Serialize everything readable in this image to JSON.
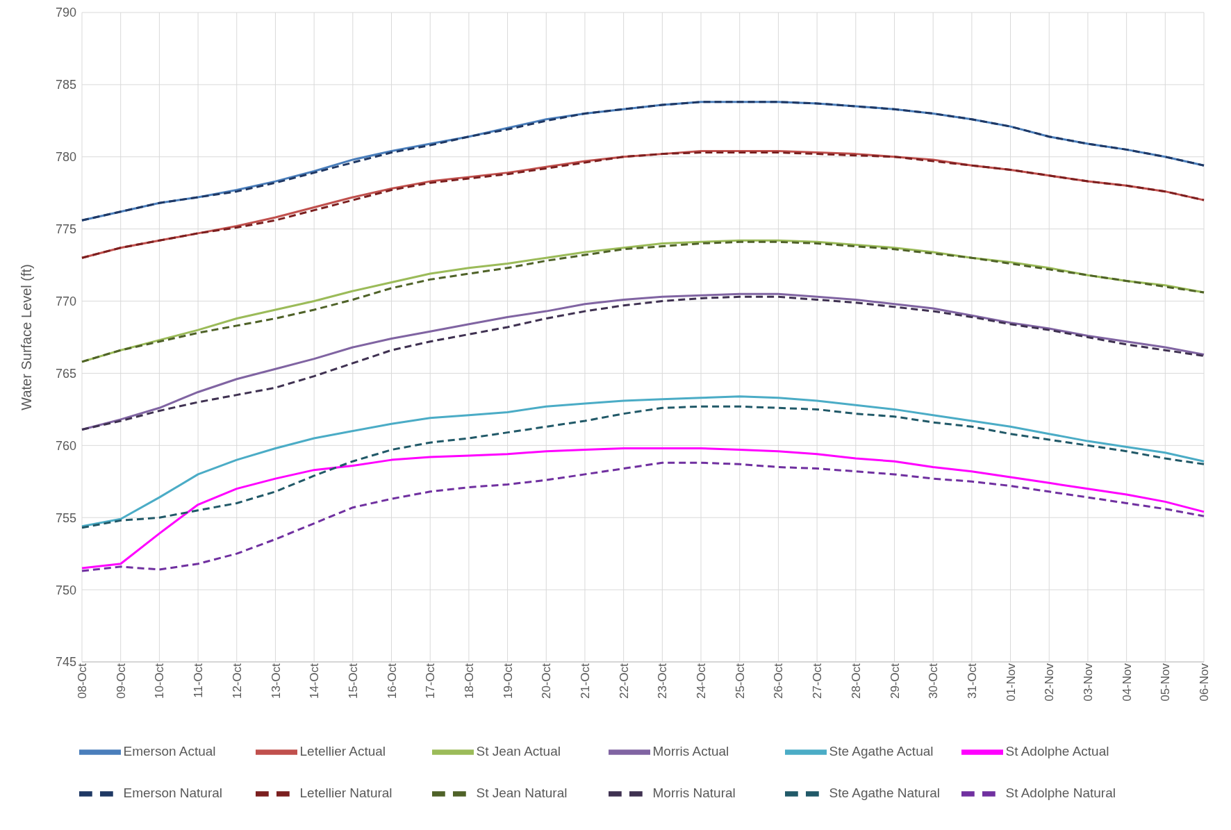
{
  "chart_data": {
    "type": "line",
    "ylabel": "Water Surface Level (ft)",
    "categories": [
      "08-Oct",
      "09-Oct",
      "10-Oct",
      "11-Oct",
      "12-Oct",
      "13-Oct",
      "14-Oct",
      "15-Oct",
      "16-Oct",
      "17-Oct",
      "18-Oct",
      "19-Oct",
      "20-Oct",
      "21-Oct",
      "22-Oct",
      "23-Oct",
      "24-Oct",
      "25-Oct",
      "26-Oct",
      "27-Oct",
      "28-Oct",
      "29-Oct",
      "30-Oct",
      "31-Oct",
      "01-Nov",
      "02-Nov",
      "03-Nov",
      "04-Nov",
      "05-Nov",
      "06-Nov"
    ],
    "ylim": [
      745,
      790
    ],
    "yticks": [
      745,
      750,
      755,
      760,
      765,
      770,
      775,
      780,
      785,
      790
    ],
    "grid": true,
    "legend": "bottom",
    "marker": "none",
    "series": [
      {
        "name": "Emerson Actual",
        "color": "#4a7ebb",
        "line_style": "solid",
        "values": [
          775.6,
          776.2,
          776.8,
          777.2,
          777.7,
          778.3,
          779.0,
          779.8,
          780.4,
          780.9,
          781.4,
          782.0,
          782.6,
          783.0,
          783.3,
          783.6,
          783.8,
          783.8,
          783.8,
          783.7,
          783.5,
          783.3,
          783.0,
          782.6,
          782.1,
          781.4,
          780.9,
          780.5,
          780.0,
          779.4
        ]
      },
      {
        "name": "Letellier Actual",
        "color": "#c0504d",
        "line_style": "solid",
        "values": [
          773.0,
          773.7,
          774.2,
          774.7,
          775.2,
          775.8,
          776.5,
          777.2,
          777.8,
          778.3,
          778.6,
          778.9,
          779.3,
          779.7,
          780.0,
          780.2,
          780.4,
          780.4,
          780.4,
          780.3,
          780.2,
          780.0,
          779.8,
          779.4,
          779.1,
          778.7,
          778.3,
          778.0,
          777.6,
          777.0
        ]
      },
      {
        "name": "St Jean Actual",
        "color": "#9bbb59",
        "line_style": "solid",
        "values": [
          765.8,
          766.6,
          767.3,
          768.0,
          768.8,
          769.4,
          770.0,
          770.7,
          771.3,
          771.9,
          772.3,
          772.6,
          773.0,
          773.4,
          773.7,
          774.0,
          774.1,
          774.2,
          774.2,
          774.1,
          773.9,
          773.7,
          773.4,
          773.0,
          772.7,
          772.3,
          771.8,
          771.4,
          771.1,
          770.6
        ]
      },
      {
        "name": "Morris Actual",
        "color": "#8064a2",
        "line_style": "solid",
        "values": [
          761.1,
          761.8,
          762.6,
          763.7,
          764.6,
          765.3,
          766.0,
          766.8,
          767.4,
          767.9,
          768.4,
          768.9,
          769.3,
          769.8,
          770.1,
          770.3,
          770.4,
          770.5,
          770.5,
          770.3,
          770.1,
          769.8,
          769.5,
          769.0,
          768.5,
          768.1,
          767.6,
          767.2,
          766.8,
          766.3
        ]
      },
      {
        "name": "Ste Agathe Actual",
        "color": "#4bacc6",
        "line_style": "solid",
        "values": [
          754.4,
          754.9,
          756.4,
          758.0,
          759.0,
          759.8,
          760.5,
          761.0,
          761.5,
          761.9,
          762.1,
          762.3,
          762.7,
          762.9,
          763.1,
          763.2,
          763.3,
          763.4,
          763.3,
          763.1,
          762.8,
          762.5,
          762.1,
          761.7,
          761.3,
          760.8,
          760.3,
          759.9,
          759.5,
          758.9
        ]
      },
      {
        "name": "St Adolphe Actual",
        "color": "#ff00ff",
        "line_style": "solid",
        "values": [
          751.5,
          751.8,
          753.9,
          755.9,
          757.0,
          757.7,
          758.3,
          758.6,
          759.0,
          759.2,
          759.3,
          759.4,
          759.6,
          759.7,
          759.8,
          759.8,
          759.8,
          759.7,
          759.6,
          759.4,
          759.1,
          758.9,
          758.5,
          758.2,
          757.8,
          757.4,
          757.0,
          756.6,
          756.1,
          755.4
        ]
      },
      {
        "name": "Emerson Natural",
        "color": "#1f3864",
        "line_style": "dashed",
        "values": [
          775.6,
          776.2,
          776.8,
          777.2,
          777.6,
          778.2,
          778.9,
          779.6,
          780.3,
          780.8,
          781.4,
          781.9,
          782.5,
          783.0,
          783.3,
          783.6,
          783.8,
          783.8,
          783.8,
          783.7,
          783.5,
          783.3,
          783.0,
          782.6,
          782.1,
          781.4,
          780.9,
          780.5,
          780.0,
          779.4
        ]
      },
      {
        "name": "Letellier Natural",
        "color": "#7b1f1f",
        "line_style": "dashed",
        "values": [
          773.0,
          773.7,
          774.2,
          774.7,
          775.1,
          775.6,
          776.3,
          777.0,
          777.7,
          778.2,
          778.5,
          778.8,
          779.2,
          779.6,
          780.0,
          780.2,
          780.3,
          780.3,
          780.3,
          780.2,
          780.1,
          780.0,
          779.7,
          779.4,
          779.1,
          778.7,
          778.3,
          778.0,
          777.6,
          777.0
        ]
      },
      {
        "name": "St Jean Natural",
        "color": "#4f6228",
        "line_style": "dashed",
        "values": [
          765.8,
          766.6,
          767.2,
          767.8,
          768.3,
          768.8,
          769.4,
          770.1,
          770.9,
          771.5,
          771.9,
          772.3,
          772.8,
          773.2,
          773.6,
          773.8,
          774.0,
          774.1,
          774.1,
          774.0,
          773.8,
          773.6,
          773.3,
          773.0,
          772.6,
          772.2,
          771.8,
          771.4,
          771.0,
          770.6
        ]
      },
      {
        "name": "Morris Natural",
        "color": "#3f3151",
        "line_style": "dashed",
        "values": [
          761.1,
          761.7,
          762.4,
          763.0,
          763.5,
          764.0,
          764.8,
          765.7,
          766.6,
          767.2,
          767.7,
          768.2,
          768.8,
          769.3,
          769.7,
          770.0,
          770.2,
          770.3,
          770.3,
          770.1,
          769.9,
          769.6,
          769.3,
          768.9,
          768.4,
          768.0,
          767.5,
          767.0,
          766.6,
          766.2
        ]
      },
      {
        "name": "Ste Agathe Natural",
        "color": "#215968",
        "line_style": "dashed",
        "values": [
          754.3,
          754.8,
          755.0,
          755.5,
          756.0,
          756.8,
          757.9,
          758.9,
          759.7,
          760.2,
          760.5,
          760.9,
          761.3,
          761.7,
          762.2,
          762.6,
          762.7,
          762.7,
          762.6,
          762.5,
          762.2,
          762.0,
          761.6,
          761.3,
          760.8,
          760.4,
          760.0,
          759.6,
          759.1,
          758.7
        ]
      },
      {
        "name": "St Adolphe Natural",
        "color": "#7030a0",
        "line_style": "dashed",
        "values": [
          751.3,
          751.6,
          751.4,
          751.8,
          752.5,
          753.5,
          754.6,
          755.7,
          756.3,
          756.8,
          757.1,
          757.3,
          757.6,
          758.0,
          758.4,
          758.8,
          758.8,
          758.7,
          758.5,
          758.4,
          758.2,
          758.0,
          757.7,
          757.5,
          757.2,
          756.8,
          756.4,
          756.0,
          755.6,
          755.1
        ]
      }
    ]
  }
}
